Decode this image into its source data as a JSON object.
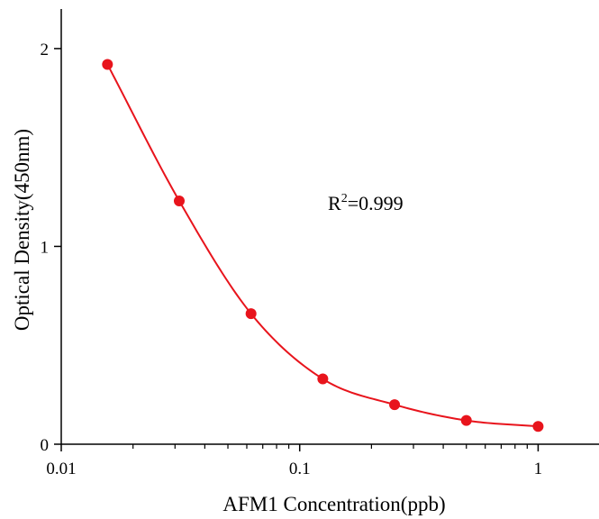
{
  "chart_data": {
    "type": "scatter",
    "xlabel": "AFM1 Concentration(ppb)",
    "ylabel": "Optical Density(450nm)",
    "x_scale": "log",
    "xlim": [
      0.01,
      1.8
    ],
    "ylim": [
      0,
      2.2
    ],
    "x_ticks": [
      {
        "value": 0.01,
        "label": "0.01"
      },
      {
        "value": 0.1,
        "label": "0.1"
      },
      {
        "value": 1,
        "label": "1"
      }
    ],
    "y_ticks": [
      {
        "value": 0,
        "label": "0"
      },
      {
        "value": 1,
        "label": "1"
      },
      {
        "value": 2,
        "label": "2"
      }
    ],
    "grid": false,
    "series": [
      {
        "color": "#e8141c",
        "x": [
          0.015625,
          0.03125,
          0.0625,
          0.125,
          0.25,
          0.5,
          1
        ],
        "y": [
          1.92,
          1.23,
          0.66,
          0.33,
          0.2,
          0.12,
          0.09
        ]
      }
    ],
    "annotation": {
      "base": "R",
      "sup": "2",
      "rest": "=0.999"
    }
  }
}
